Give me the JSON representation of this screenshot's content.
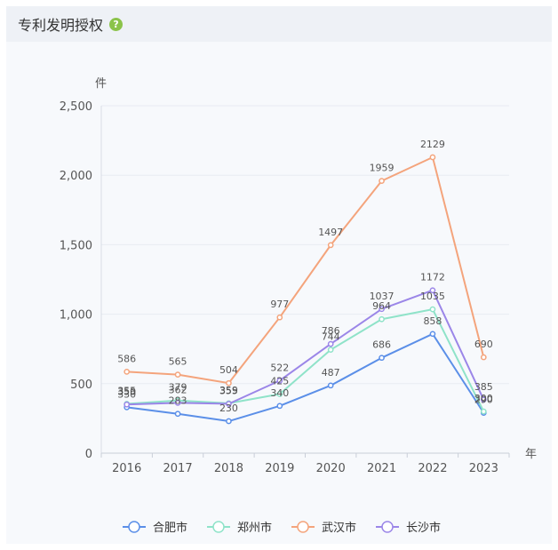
{
  "header": {
    "title": "专利发明授权",
    "help_icon": "question-circle-icon"
  },
  "chart_data": {
    "type": "line",
    "title": "专利发明授权",
    "y_unit": "件",
    "x_unit": "年",
    "categories": [
      "2016",
      "2017",
      "2018",
      "2019",
      "2020",
      "2021",
      "2022",
      "2023"
    ],
    "y_ticks": [
      "0",
      "500",
      "1,000",
      "1,500",
      "2,000",
      "2,500"
    ],
    "ylim": [
      0,
      2500
    ],
    "grid": true,
    "legend_position": "bottom",
    "series": [
      {
        "name": "合肥市",
        "color": "#5b8fe8",
        "values": [
          330,
          283,
          230,
          340,
          487,
          686,
          858,
          290
        ]
      },
      {
        "name": "郑州市",
        "color": "#8fe3c9",
        "values": [
          355,
          379,
          359,
          425,
          744,
          964,
          1035,
          300
        ]
      },
      {
        "name": "武汉市",
        "color": "#f4a47c",
        "values": [
          586,
          565,
          504,
          977,
          1497,
          1959,
          2129,
          690
        ]
      },
      {
        "name": "长沙市",
        "color": "#9b86e8",
        "values": [
          350,
          362,
          355,
          522,
          786,
          1037,
          1172,
          385
        ]
      }
    ]
  }
}
